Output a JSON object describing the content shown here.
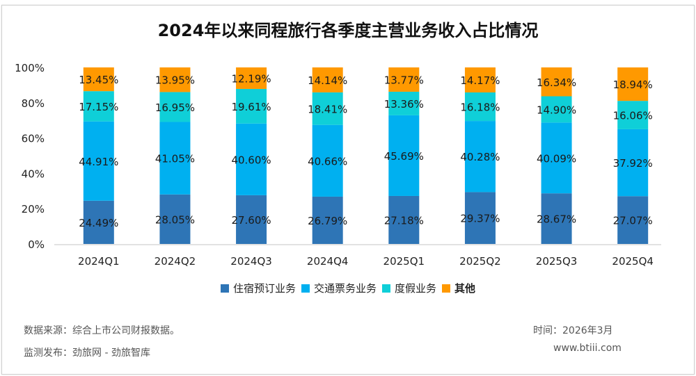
{
  "chart_data": {
    "type": "bar",
    "stacked": true,
    "title": "2024年以来同程旅行各季度主营业务收入占比情况",
    "xlabel": "",
    "ylabel": "",
    "ylim": [
      0,
      100
    ],
    "yticks": [
      "0%",
      "20%",
      "40%",
      "60%",
      "80%",
      "100%"
    ],
    "grid": false,
    "legend_position": "bottom",
    "categories": [
      "2024Q1",
      "2024Q2",
      "2024Q3",
      "2024Q4",
      "2025Q1",
      "2025Q2",
      "2025Q3",
      "2025Q4"
    ],
    "series": [
      {
        "name": "住宿预订业务",
        "color": "#2E75B6",
        "values": [
          24.49,
          28.05,
          27.6,
          26.79,
          27.18,
          29.37,
          28.67,
          27.07
        ]
      },
      {
        "name": "交通票务业务",
        "color": "#00B0F0",
        "values": [
          44.91,
          41.05,
          40.6,
          40.66,
          45.69,
          40.28,
          40.09,
          37.92
        ]
      },
      {
        "name": "度假业务",
        "color": "#0FCFD8",
        "values": [
          17.15,
          16.95,
          19.61,
          18.41,
          13.36,
          16.18,
          14.9,
          16.06
        ]
      },
      {
        "name": "其他",
        "color": "#FF9900",
        "values": [
          13.45,
          13.95,
          12.19,
          14.14,
          13.77,
          14.17,
          16.34,
          18.94
        ]
      }
    ],
    "data_label_format": "{v}%"
  },
  "footer": {
    "source": "数据来源：综合上市公司财报数据。",
    "publisher": "监测发布：劲旅网 - 劲旅智库",
    "time": "时间：2026年3月",
    "website": "www.btiii.com"
  }
}
